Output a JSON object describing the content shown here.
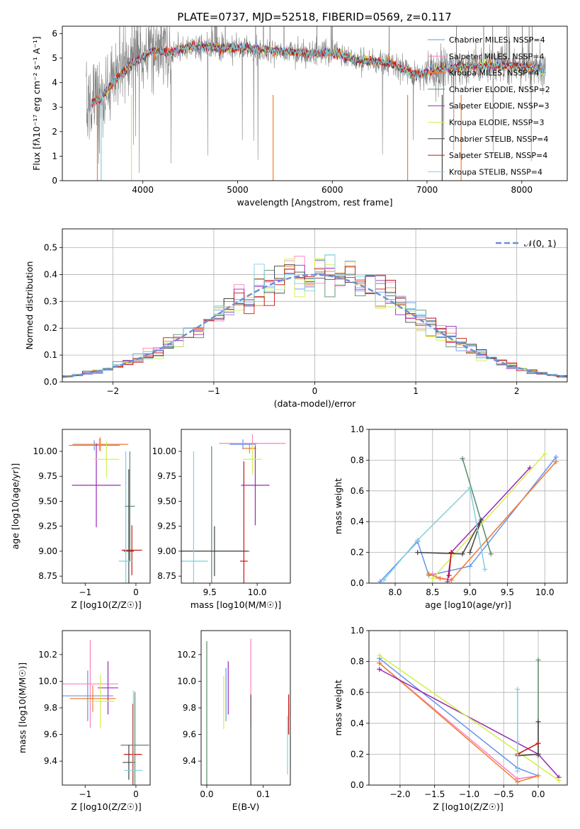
{
  "colors": [
    "#6495ed",
    "#ff7fbf",
    "#f07f2f",
    "#5a8a6a",
    "#9a28b6",
    "#d2f04a",
    "#444444",
    "#c81414",
    "#7fd0e0"
  ],
  "chart_data": [
    {
      "type": "line",
      "id": "spectrum",
      "title": "PLATE=0737, MJD=52518, FIBERID=0569, z=0.117",
      "xlabel": "wavelength [Angstrom, rest frame]",
      "ylabel": "Flux [fλ10⁻¹⁷ erg cm⁻² s⁻¹ A⁻¹]",
      "xlim": [
        3150,
        8480
      ],
      "ylim": [
        0,
        6.3
      ],
      "xticks": [
        4000,
        5000,
        6000,
        7000,
        8000
      ],
      "yticks": [
        0,
        1,
        2,
        3,
        4,
        5,
        6
      ],
      "data_wavelength_range": [
        3400,
        8250
      ],
      "legend_position": "upper right",
      "legend": [
        "Chabrier MILES, NSSP=4",
        "Salpeter MILES, NSSP=4",
        "Kroupa MILES, NSSP=4",
        "Chabrier ELODIE, NSSP=2",
        "Salpeter ELODIE, NSSP=3",
        "Kroupa ELODIE, NSSP=3",
        "Chabrier STELIB, NSSP=4",
        "Salpeter STELIB, NSSP=4",
        "Kroupa STELIB, NSSP=4"
      ],
      "continuum": {
        "x": [
          3400,
          3550,
          3700,
          3900,
          4100,
          4300,
          4500,
          4800,
          5100,
          5400,
          5700,
          6000,
          6300,
          6600,
          6900,
          7200,
          7500,
          7800,
          8100,
          8250
        ],
        "y": [
          3.2,
          3.4,
          4.2,
          4.9,
          5.3,
          5.2,
          5.5,
          5.4,
          5.4,
          5.3,
          5.2,
          5.2,
          4.9,
          4.8,
          4.3,
          4.6,
          4.7,
          4.7,
          4.6,
          4.5
        ]
      }
    },
    {
      "type": "histogram",
      "id": "residuals",
      "xlabel": "(data-model)/error",
      "ylabel": "Normed distribution",
      "xlim": [
        -2.5,
        2.5
      ],
      "ylim": [
        0,
        0.57
      ],
      "xticks": [
        -2,
        -1,
        0,
        1,
        2
      ],
      "yticks": [
        0.0,
        0.1,
        0.2,
        0.3,
        0.4,
        0.5
      ],
      "reference_curve": "𝒩(0, 1)",
      "legend_position": "upper right",
      "bin_width": 0.1
    },
    {
      "type": "errorbar",
      "id": "age-vs-z",
      "xlabel": "Z [log10(Z/Z☉)]",
      "ylabel": "age  [log10(age/yr)]",
      "xlim": [
        -1.45,
        0.28
      ],
      "ylim": [
        8.68,
        10.22
      ],
      "xticks": [
        -1,
        0
      ],
      "yticks": [
        8.75,
        9.0,
        9.25,
        9.5,
        9.75,
        10.0
      ],
      "points": [
        {
          "x": -0.82,
          "xerr": 0.5,
          "y": 10.06,
          "yerr": 0.05
        },
        {
          "x": -0.72,
          "xerr": 0.5,
          "y": 10.07,
          "yerr": 0.06
        },
        {
          "x": -0.7,
          "xerr": 0.55,
          "y": 10.07,
          "yerr": 0.07
        },
        {
          "x": -0.12,
          "xerr": 0.1,
          "y": 9.45,
          "yerr": 0.55
        },
        {
          "x": -0.78,
          "xerr": 0.48,
          "y": 9.66,
          "yerr": 0.42
        },
        {
          "x": -0.58,
          "xerr": 0.25,
          "y": 9.92,
          "yerr": 0.18
        },
        {
          "x": -0.14,
          "xerr": 0.1,
          "y": 9.0,
          "yerr": 0.82
        },
        {
          "x": -0.08,
          "xerr": 0.2,
          "y": 9.01,
          "yerr": 0.25
        },
        {
          "x": -0.2,
          "xerr": 0.14,
          "y": 8.9,
          "yerr": 1.1
        }
      ]
    },
    {
      "type": "errorbar",
      "id": "age-vs-mass",
      "xlabel": "mass [log10(M/M☉)]",
      "ylabel": "",
      "xlim": [
        9.2,
        10.35
      ],
      "ylim": [
        8.68,
        10.22
      ],
      "xticks": [
        9.5,
        10.0
      ],
      "yticks": [
        8.75,
        9.0,
        9.25,
        9.5,
        9.75,
        10.0
      ],
      "points": [
        {
          "x": 9.85,
          "xerr": 0.14,
          "y": 10.07,
          "yerr": 0.05
        },
        {
          "x": 9.95,
          "xerr": 0.35,
          "y": 10.08,
          "yerr": 0.09
        },
        {
          "x": 9.92,
          "xerr": 0.07,
          "y": 10.03,
          "yerr": 0.05
        },
        {
          "x": 9.52,
          "xerr": 0.4,
          "y": 9.0,
          "yerr": 1.05
        },
        {
          "x": 9.98,
          "xerr": 0.15,
          "y": 9.66,
          "yerr": 0.4
        },
        {
          "x": 9.95,
          "xerr": 0.1,
          "y": 9.92,
          "yerr": 0.15
        },
        {
          "x": 9.55,
          "xerr": 0.35,
          "y": 9.0,
          "yerr": 0.25
        },
        {
          "x": 9.86,
          "xerr": 0.04,
          "y": 8.9,
          "yerr": 1.0
        },
        {
          "x": 9.33,
          "xerr": 0.15,
          "y": 8.9,
          "yerr": 1.1
        }
      ]
    },
    {
      "type": "line",
      "id": "massweight-vs-age",
      "xlabel": "age  [log10(age/yr)]",
      "ylabel": "mass weight",
      "xlim": [
        7.65,
        10.3
      ],
      "ylim": [
        0,
        1.0
      ],
      "xticks": [
        8.0,
        8.5,
        9.0,
        9.5,
        10.0
      ],
      "yticks": [
        0.0,
        0.2,
        0.4,
        0.6,
        0.8,
        1.0
      ],
      "series": [
        {
          "x": [
            7.8,
            8.3,
            8.45,
            9.0,
            10.15
          ],
          "y": [
            0.01,
            0.27,
            0.05,
            0.11,
            0.82
          ]
        },
        {
          "x": [
            8.5,
            8.55,
            8.75,
            10.15
          ],
          "y": [
            0.06,
            0.04,
            0.02,
            0.79
          ]
        },
        {
          "x": [
            8.45,
            8.6,
            8.75,
            10.15
          ],
          "y": [
            0.06,
            0.03,
            0.02,
            0.79
          ]
        },
        {
          "x": [
            8.9,
            9.28
          ],
          "y": [
            0.81,
            0.19
          ]
        },
        {
          "x": [
            8.7,
            8.75,
            9.8
          ],
          "y": [
            0.01,
            0.2,
            0.75
          ]
        },
        {
          "x": [
            8.5,
            10.0
          ],
          "y": [
            0.03,
            0.84
          ]
        },
        {
          "x": [
            8.3,
            8.9,
            9.15,
            9.0
          ],
          "y": [
            0.2,
            0.19,
            0.41,
            0.2
          ]
        },
        {
          "x": [
            8.72,
            8.75
          ],
          "y": [
            0.05,
            0.2
          ]
        },
        {
          "x": [
            7.85,
            8.3,
            9.0,
            9.2
          ],
          "y": [
            0.02,
            0.28,
            0.62,
            0.09
          ]
        }
      ]
    },
    {
      "type": "errorbar",
      "id": "mass-vs-z",
      "xlabel": "Z [log10(Z/Z☉)]",
      "ylabel": "mass [log10(M/M☉)]",
      "xlim": [
        -1.45,
        0.28
      ],
      "ylim": [
        9.22,
        10.38
      ],
      "xticks": [
        -1,
        0
      ],
      "yticks": [
        9.4,
        9.6,
        9.8,
        10.0,
        10.2
      ],
      "points": [
        {
          "x": -0.95,
          "xerr": 0.5,
          "y": 9.89,
          "yerr": 0.19
        },
        {
          "x": -0.9,
          "xerr": 0.55,
          "y": 9.98,
          "yerr": 0.33
        },
        {
          "x": -0.85,
          "xerr": 0.45,
          "y": 9.87,
          "yerr": 0.1
        },
        {
          "x": -0.02,
          "xerr": 0.28,
          "y": 9.52,
          "yerr": 0.4
        },
        {
          "x": -0.55,
          "xerr": 0.2,
          "y": 9.95,
          "yerr": 0.2
        },
        {
          "x": -0.7,
          "xerr": 0.28,
          "y": 9.85,
          "yerr": 0.2
        },
        {
          "x": -0.14,
          "xerr": 0.12,
          "y": 9.39,
          "yerr": 0.13
        },
        {
          "x": -0.06,
          "xerr": 0.18,
          "y": 9.45,
          "yerr": 0.38
        },
        {
          "x": -0.05,
          "xerr": 0.18,
          "y": 9.33,
          "yerr": 0.6
        }
      ]
    },
    {
      "type": "errorbar",
      "id": "mass-vs-ebv",
      "xlabel": "E(B-V)",
      "ylabel": "",
      "xlim": [
        -0.01,
        0.148
      ],
      "ylim": [
        9.22,
        10.38
      ],
      "xticks": [
        0.0,
        0.1
      ],
      "yticks": [
        9.4,
        9.6,
        9.8,
        10.0,
        10.2
      ],
      "points": [
        {
          "x": 0.034,
          "xerr": 0,
          "y": 9.9,
          "yerr": 0.2
        },
        {
          "x": 0.078,
          "xerr": 0,
          "y": 9.99,
          "yerr": 0.33
        },
        {
          "x": 0.145,
          "xerr": 0,
          "y": 9.78,
          "yerr": 0.06
        },
        {
          "x": 0.0,
          "xerr": 0,
          "y": 9.75,
          "yerr": 0.55
        },
        {
          "x": 0.038,
          "xerr": 0,
          "y": 9.95,
          "yerr": 0.2
        },
        {
          "x": 0.03,
          "xerr": 0,
          "y": 9.84,
          "yerr": 0.2
        },
        {
          "x": 0.078,
          "xerr": 0,
          "y": 9.55,
          "yerr": 0.35
        },
        {
          "x": 0.145,
          "xerr": 0,
          "y": 9.75,
          "yerr": 0.15
        },
        {
          "x": 0.143,
          "xerr": 0,
          "y": 9.52,
          "yerr": 0.22
        }
      ]
    },
    {
      "type": "line",
      "id": "massweight-vs-z",
      "xlabel": "Z [log10(Z/Z☉)]",
      "ylabel": "mass weight",
      "xlim": [
        -2.45,
        0.42
      ],
      "ylim": [
        0,
        1.0
      ],
      "xticks": [
        -2.0,
        -1.5,
        -1.0,
        -0.5,
        0.0
      ],
      "yticks": [
        0.0,
        0.2,
        0.4,
        0.6,
        0.8,
        1.0
      ],
      "series": [
        {
          "x": [
            -2.3,
            -0.3,
            0.0
          ],
          "y": [
            0.82,
            0.11,
            0.06
          ]
        },
        {
          "x": [
            -2.3,
            -0.3,
            0.0
          ],
          "y": [
            0.79,
            0.04,
            0.06
          ]
        },
        {
          "x": [
            -2.3,
            -0.3,
            0.0
          ],
          "y": [
            0.79,
            0.02,
            0.06
          ]
        },
        {
          "x": [
            0.0,
            0.0
          ],
          "y": [
            0.19,
            0.81
          ]
        },
        {
          "x": [
            -2.3,
            0.0,
            0.3
          ],
          "y": [
            0.75,
            0.2,
            0.05
          ]
        },
        {
          "x": [
            -2.3,
            0.3
          ],
          "y": [
            0.84,
            0.03
          ]
        },
        {
          "x": [
            -0.3,
            0.0,
            0.0
          ],
          "y": [
            0.19,
            0.2,
            0.41
          ]
        },
        {
          "x": [
            -0.3,
            0.0
          ],
          "y": [
            0.2,
            0.27
          ]
        },
        {
          "x": [
            -0.3,
            -0.3,
            -0.3
          ],
          "y": [
            0.09,
            0.62,
            0.28
          ]
        }
      ]
    }
  ]
}
